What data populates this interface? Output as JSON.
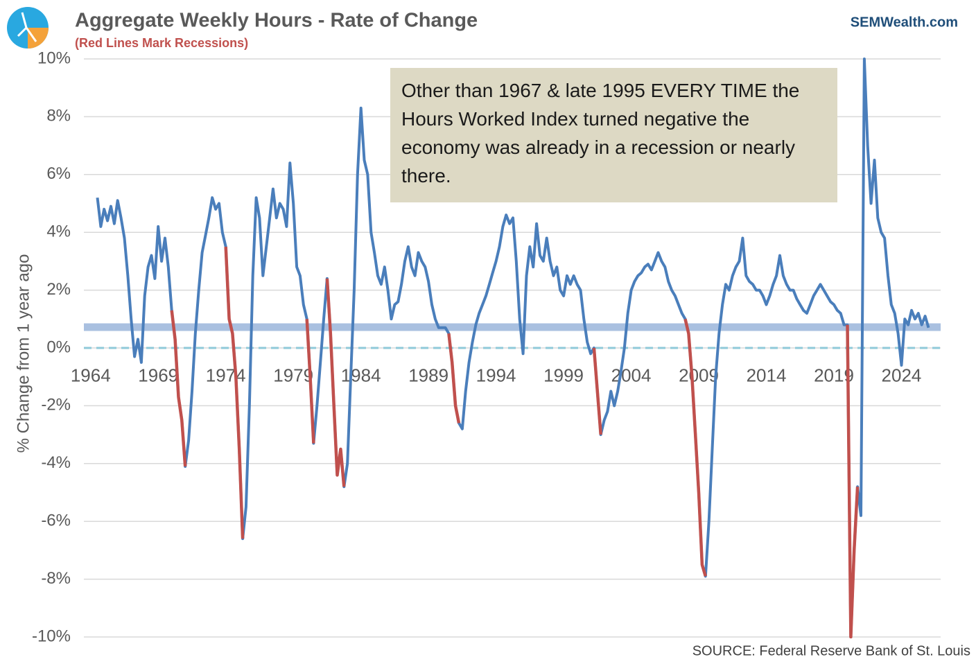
{
  "chart_data": {
    "type": "line",
    "title": "Aggregate Weekly Hours - Rate of Change",
    "subtitle": "(Red Lines Mark Recessions)",
    "brand": "SEMWealth.com",
    "source": "SOURCE:  Federal Reserve Bank of St. Louis",
    "y_label": "% Change from 1 year ago",
    "annotation": "Other than 1967 & late 1995 EVERY TIME the Hours Worked Index turned negative the economy was already in a recession or nearly there.",
    "xlim": [
      1963.5,
      2026.9
    ],
    "xticks": [
      1964,
      1969,
      1974,
      1979,
      1984,
      1989,
      1994,
      1999,
      2004,
      2009,
      2014,
      2019,
      2024
    ],
    "ylim": [
      -10,
      10
    ],
    "yticks": [
      {
        "value": 10,
        "label": "10%"
      },
      {
        "value": 8,
        "label": "8%"
      },
      {
        "value": 6,
        "label": "6%"
      },
      {
        "value": 4,
        "label": "4%"
      },
      {
        "value": 2,
        "label": "2%"
      },
      {
        "value": 0,
        "label": "0%"
      },
      {
        "value": -2,
        "label": "-2%"
      },
      {
        "value": -4,
        "label": "-4%"
      },
      {
        "value": -6,
        "label": "-6%"
      },
      {
        "value": -8,
        "label": "-8%"
      },
      {
        "value": -10,
        "label": "-10%"
      }
    ],
    "grid": true,
    "color": "#4a7ebb",
    "recession_color": "#c0504d",
    "recessions": [
      [
        1970.0,
        1971.0
      ],
      [
        1974.0,
        1975.25
      ],
      [
        1980.0,
        1980.5
      ],
      [
        1981.5,
        1982.75
      ],
      [
        1990.5,
        1991.25
      ],
      [
        2001.25,
        2001.75
      ],
      [
        2008.0,
        2009.5
      ],
      [
        2020.0,
        2020.75
      ]
    ],
    "reference_lines": [
      {
        "value": 0.72,
        "color": "#a9c0e0",
        "style": "band"
      },
      {
        "value": 0,
        "color": "#8fc9d9",
        "style": "dashed"
      }
    ],
    "x": [
      1964.5,
      1964.75,
      1965,
      1965.25,
      1965.5,
      1965.75,
      1966,
      1966.25,
      1966.5,
      1966.75,
      1967,
      1967.25,
      1967.5,
      1967.75,
      1968,
      1968.25,
      1968.5,
      1968.75,
      1969,
      1969.25,
      1969.5,
      1969.75,
      1970,
      1970.25,
      1970.5,
      1970.75,
      1971,
      1971.25,
      1971.5,
      1971.75,
      1972,
      1972.25,
      1972.5,
      1972.75,
      1973,
      1973.25,
      1973.5,
      1973.75,
      1974,
      1974.25,
      1974.5,
      1974.75,
      1975,
      1975.25,
      1975.5,
      1975.75,
      1976,
      1976.25,
      1976.5,
      1976.75,
      1977,
      1977.25,
      1977.5,
      1977.75,
      1978,
      1978.25,
      1978.5,
      1978.75,
      1979,
      1979.25,
      1979.5,
      1979.75,
      1980,
      1980.25,
      1980.5,
      1980.75,
      1981,
      1981.25,
      1981.5,
      1981.75,
      1982,
      1982.25,
      1982.5,
      1982.75,
      1983,
      1983.25,
      1983.5,
      1983.75,
      1984,
      1984.25,
      1984.5,
      1984.75,
      1985,
      1985.25,
      1985.5,
      1985.75,
      1986,
      1986.25,
      1986.5,
      1986.75,
      1987,
      1987.25,
      1987.5,
      1987.75,
      1988,
      1988.25,
      1988.5,
      1988.75,
      1989,
      1989.25,
      1989.5,
      1989.75,
      1990,
      1990.25,
      1990.5,
      1990.75,
      1991,
      1991.25,
      1991.5,
      1991.75,
      1992,
      1992.25,
      1992.5,
      1992.75,
      1993,
      1993.25,
      1993.5,
      1993.75,
      1994,
      1994.25,
      1994.5,
      1994.75,
      1995,
      1995.25,
      1995.5,
      1995.75,
      1996,
      1996.25,
      1996.5,
      1996.75,
      1997,
      1997.25,
      1997.5,
      1997.75,
      1998,
      1998.25,
      1998.5,
      1998.75,
      1999,
      1999.25,
      1999.5,
      1999.75,
      2000,
      2000.25,
      2000.5,
      2000.75,
      2001,
      2001.25,
      2001.5,
      2001.75,
      2002,
      2002.25,
      2002.5,
      2002.75,
      2003,
      2003.25,
      2003.5,
      2003.75,
      2004,
      2004.25,
      2004.5,
      2004.75,
      2005,
      2005.25,
      2005.5,
      2005.75,
      2006,
      2006.25,
      2006.5,
      2006.75,
      2007,
      2007.25,
      2007.5,
      2007.75,
      2008,
      2008.25,
      2008.5,
      2008.75,
      2009,
      2009.25,
      2009.5,
      2009.75,
      2010,
      2010.25,
      2010.5,
      2010.75,
      2011,
      2011.25,
      2011.5,
      2011.75,
      2012,
      2012.25,
      2012.5,
      2012.75,
      2013,
      2013.25,
      2013.5,
      2013.75,
      2014,
      2014.25,
      2014.5,
      2014.75,
      2015,
      2015.25,
      2015.5,
      2015.75,
      2016,
      2016.25,
      2016.5,
      2016.75,
      2017,
      2017.25,
      2017.5,
      2017.75,
      2018,
      2018.25,
      2018.5,
      2018.75,
      2019,
      2019.25,
      2019.5,
      2019.75,
      2020,
      2020.25,
      2020.5,
      2020.75,
      2021,
      2021.25,
      2021.5,
      2021.75,
      2022,
      2022.25,
      2022.5,
      2022.75,
      2023,
      2023.25,
      2023.5,
      2023.75,
      2024,
      2024.25,
      2024.5,
      2024.75,
      2025,
      2025.25,
      2025.5,
      2025.75,
      2026
    ],
    "values": [
      5.2,
      4.2,
      4.8,
      4.4,
      4.9,
      4.3,
      5.1,
      4.5,
      3.8,
      2.5,
      1.0,
      -0.3,
      0.3,
      -0.5,
      1.8,
      2.8,
      3.2,
      2.4,
      4.2,
      3.0,
      3.8,
      2.8,
      1.3,
      0.3,
      -1.7,
      -2.5,
      -4.1,
      -3.2,
      -1.5,
      0.5,
      2.0,
      3.3,
      3.9,
      4.5,
      5.2,
      4.8,
      5.0,
      4.0,
      3.5,
      1.0,
      0.5,
      -1.0,
      -3.5,
      -6.6,
      -5.5,
      -2.0,
      2.5,
      5.2,
      4.5,
      2.5,
      3.5,
      4.5,
      5.5,
      4.5,
      5.0,
      4.8,
      4.2,
      6.4,
      5.0,
      2.8,
      2.5,
      1.5,
      1.0,
      -1.0,
      -3.3,
      -2.0,
      -0.5,
      1.0,
      2.4,
      0.5,
      -2.0,
      -4.4,
      -3.5,
      -4.8,
      -4.0,
      -1.0,
      2.0,
      6.0,
      8.3,
      6.5,
      6.0,
      4.0,
      3.3,
      2.5,
      2.2,
      2.8,
      2.0,
      1.0,
      1.5,
      1.6,
      2.2,
      3.0,
      3.5,
      2.8,
      2.5,
      3.3,
      3.0,
      2.8,
      2.3,
      1.5,
      1.0,
      0.7,
      0.7,
      0.7,
      0.5,
      -0.5,
      -2.0,
      -2.6,
      -2.8,
      -1.5,
      -0.5,
      0.2,
      0.8,
      1.2,
      1.5,
      1.8,
      2.2,
      2.6,
      3.0,
      3.5,
      4.2,
      4.6,
      4.3,
      4.5,
      3.0,
      1.0,
      -0.2,
      2.5,
      3.5,
      2.8,
      4.3,
      3.2,
      3.0,
      3.8,
      3.0,
      2.5,
      2.8,
      2.0,
      1.8,
      2.5,
      2.2,
      2.5,
      2.2,
      2.0,
      1.0,
      0.2,
      -0.2,
      0.0,
      -1.5,
      -3.0,
      -2.5,
      -2.2,
      -1.5,
      -2.0,
      -1.5,
      -0.8,
      0.0,
      1.2,
      2.0,
      2.3,
      2.5,
      2.6,
      2.8,
      2.9,
      2.7,
      3.0,
      3.3,
      3.0,
      2.8,
      2.3,
      2.0,
      1.8,
      1.5,
      1.2,
      1.0,
      0.5,
      -1.0,
      -3.0,
      -5.0,
      -7.5,
      -7.9,
      -6.0,
      -3.5,
      -1.0,
      0.5,
      1.5,
      2.2,
      2.0,
      2.5,
      2.8,
      3.0,
      3.8,
      2.5,
      2.3,
      2.2,
      2.0,
      2.0,
      1.8,
      1.5,
      1.8,
      2.2,
      2.5,
      3.2,
      2.5,
      2.2,
      2.0,
      2.0,
      1.7,
      1.5,
      1.3,
      1.2,
      1.5,
      1.8,
      2.0,
      2.2,
      2.0,
      1.8,
      1.6,
      1.5,
      1.3,
      1.2,
      0.8,
      0.8,
      -10.0,
      -7.0,
      -4.8,
      -5.8,
      10.0,
      7.0,
      5.0,
      6.5,
      4.5,
      4.0,
      3.8,
      2.5,
      1.5,
      1.2,
      0.5,
      -0.6,
      1.0,
      0.8,
      1.3,
      1.0,
      1.2,
      0.8,
      1.1,
      0.7
    ]
  }
}
